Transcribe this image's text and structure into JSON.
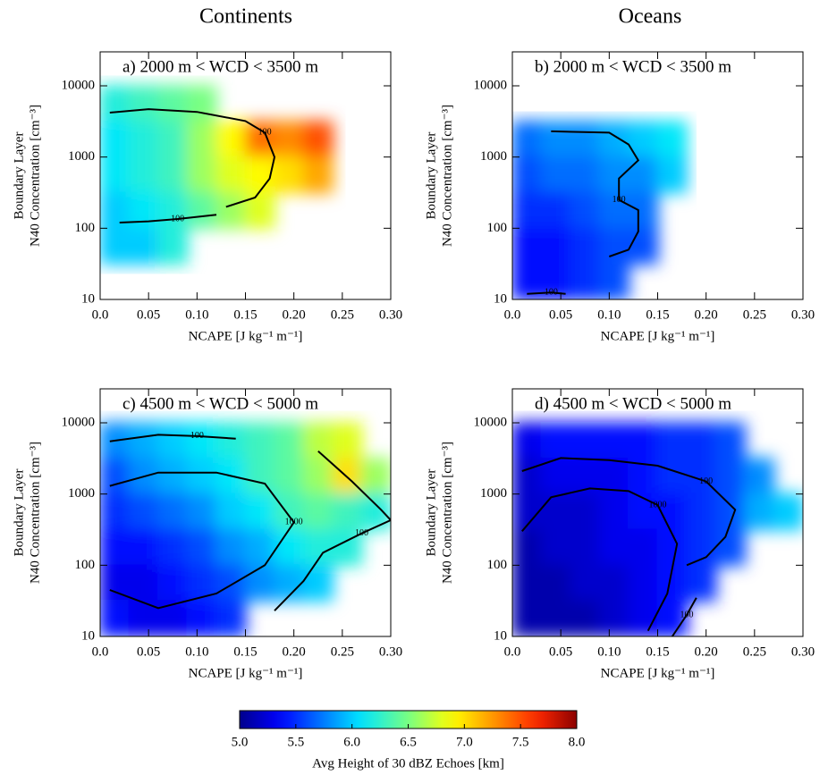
{
  "column_titles": [
    "Continents",
    "Oceans"
  ],
  "chart_data": [
    {
      "type": "contour",
      "title": "a)  2000 m < WCD < 3500 m",
      "xlabel": "NCAPE [J kg⁻¹ m⁻¹]",
      "ylabel": [
        "Boundary Layer",
        "N40 Concentration [cm⁻³]"
      ],
      "xlim": [
        0,
        0.3
      ],
      "xticks": [
        {
          "value": 0,
          "label": "0.0"
        },
        0.05,
        {
          "value": 0.1,
          "label": "0.10"
        },
        0.15,
        {
          "value": 0.2,
          "label": "0.20"
        },
        0.25,
        {
          "value": 0.3,
          "label": "0.30"
        }
      ],
      "ylim": [
        10,
        30000
      ],
      "yticks": [
        10,
        100,
        1000,
        10000
      ],
      "yscale": "log",
      "z": [
        [
          6.2,
          6.3,
          6.4,
          6.5,
          null,
          null,
          null,
          null,
          null,
          null
        ],
        [
          6.1,
          6.2,
          6.3,
          6.6,
          6.9,
          7.4,
          7.3,
          7.5,
          null,
          null
        ],
        [
          6.1,
          6.2,
          6.3,
          6.6,
          6.8,
          6.9,
          7.0,
          7.2,
          null,
          null
        ],
        [
          6.0,
          6.1,
          6.2,
          6.4,
          6.6,
          6.8,
          null,
          null,
          null,
          null
        ],
        [
          6.0,
          6.0,
          6.2,
          null,
          null,
          null,
          null,
          null,
          null,
          null
        ],
        [
          null,
          null,
          null,
          null,
          null,
          null,
          null,
          null,
          null,
          null
        ]
      ],
      "contours": [
        {
          "level": 100,
          "x": [
            0.01,
            0.05,
            0.1,
            0.15,
            0.17,
            0.18,
            0.175,
            0.16,
            0.13
          ],
          "y": [
            4200,
            4700,
            4300,
            3200,
            2200,
            1000,
            500,
            270,
            200
          ]
        },
        {
          "level": 100,
          "x": [
            0.02,
            0.05,
            0.08,
            0.12
          ],
          "y": [
            120,
            125,
            135,
            155
          ]
        }
      ]
    },
    {
      "type": "contour",
      "title": "b)  2000 m < WCD < 3500 m",
      "xlabel": "NCAPE [J kg⁻¹ m⁻¹]",
      "ylabel": [
        "Boundary Layer",
        "N40 Concentration [cm⁻³]"
      ],
      "xlim": [
        0,
        0.3
      ],
      "xticks": [
        {
          "value": 0,
          "label": "0.0"
        },
        0.05,
        {
          "value": 0.1,
          "label": "0.10"
        },
        0.15,
        {
          "value": 0.2,
          "label": "0.20"
        },
        0.25,
        {
          "value": 0.3,
          "label": "0.30"
        }
      ],
      "ylim": [
        10,
        30000
      ],
      "yticks": [
        10,
        100,
        1000,
        10000
      ],
      "yscale": "log",
      "z": [
        [
          null,
          null,
          null,
          null,
          null,
          null,
          null,
          null,
          null,
          null
        ],
        [
          5.7,
          5.8,
          5.8,
          5.9,
          6.0,
          6.1,
          null,
          null,
          null,
          null
        ],
        [
          5.6,
          5.7,
          5.7,
          5.8,
          5.8,
          6.0,
          null,
          null,
          null,
          null
        ],
        [
          5.5,
          5.5,
          5.6,
          5.7,
          5.7,
          null,
          null,
          null,
          null,
          null
        ],
        [
          5.4,
          5.4,
          5.5,
          5.6,
          5.6,
          null,
          null,
          null,
          null,
          null
        ],
        [
          5.4,
          5.4,
          5.5,
          5.6,
          null,
          null,
          null,
          null,
          null,
          null
        ]
      ],
      "contours": [
        {
          "level": 100,
          "x": [
            0.04,
            0.1,
            0.12,
            0.13,
            0.11,
            0.11,
            0.13,
            0.13,
            0.12,
            0.1
          ],
          "y": [
            2300,
            2200,
            1500,
            900,
            500,
            250,
            180,
            90,
            50,
            40
          ]
        },
        {
          "level": 100,
          "x": [
            0.015,
            0.04,
            0.055
          ],
          "y": [
            12,
            12.5,
            12
          ]
        }
      ]
    },
    {
      "type": "contour",
      "title": "c)  4500 m < WCD < 5000 m",
      "xlabel": "NCAPE [J kg⁻¹ m⁻¹]",
      "ylabel": [
        "Boundary Layer",
        "N40 Concentration [cm⁻³]"
      ],
      "xlim": [
        0,
        0.3
      ],
      "xticks": [
        {
          "value": 0,
          "label": "0.0"
        },
        0.05,
        {
          "value": 0.1,
          "label": "0.10"
        },
        0.15,
        {
          "value": 0.2,
          "label": "0.20"
        },
        0.25,
        {
          "value": 0.3,
          "label": "0.30"
        }
      ],
      "ylim": [
        10,
        30000
      ],
      "yticks": [
        10,
        100,
        1000,
        10000
      ],
      "yscale": "log",
      "z": [
        [
          5.8,
          5.9,
          6.0,
          6.1,
          6.2,
          6.3,
          6.4,
          6.7,
          6.8,
          null
        ],
        [
          5.6,
          5.8,
          5.9,
          6.0,
          6.1,
          6.3,
          6.4,
          6.6,
          7.0,
          6.6
        ],
        [
          5.5,
          5.6,
          5.7,
          5.8,
          6.0,
          6.1,
          6.3,
          6.4,
          6.3,
          6.2
        ],
        [
          5.4,
          5.4,
          5.5,
          5.6,
          5.8,
          5.9,
          6.1,
          6.2,
          6.2,
          null
        ],
        [
          5.3,
          5.3,
          5.4,
          5.5,
          5.6,
          5.8,
          5.9,
          6.0,
          null,
          null
        ],
        [
          5.4,
          5.3,
          5.3,
          5.4,
          5.5,
          null,
          null,
          null,
          null,
          null
        ]
      ],
      "contours": [
        {
          "level": 100,
          "x": [
            0.01,
            0.06,
            0.1,
            0.14
          ],
          "y": [
            5500,
            6800,
            6500,
            6000
          ]
        },
        {
          "level": 1000,
          "x": [
            0.01,
            0.06,
            0.12,
            0.17,
            0.2,
            0.17,
            0.12,
            0.06,
            0.01
          ],
          "y": [
            1300,
            2000,
            2000,
            1400,
            400,
            100,
            40,
            25,
            45
          ]
        },
        {
          "level": 100,
          "x": [
            0.225,
            0.26,
            0.29,
            0.3,
            0.27,
            0.23,
            0.21,
            0.18
          ],
          "y": [
            4000,
            1500,
            600,
            430,
            280,
            150,
            60,
            23
          ]
        }
      ]
    },
    {
      "type": "contour",
      "title": "d)  4500 m < WCD < 5000 m",
      "xlabel": "NCAPE [J kg⁻¹ m⁻¹]",
      "ylabel": [
        "Boundary Layer",
        "N40 Concentration [cm⁻³]"
      ],
      "xlim": [
        0,
        0.3
      ],
      "xticks": [
        {
          "value": 0,
          "label": "0.0"
        },
        0.05,
        {
          "value": 0.1,
          "label": "0.10"
        },
        0.15,
        {
          "value": 0.2,
          "label": "0.20"
        },
        0.25,
        {
          "value": 0.3,
          "label": "0.30"
        }
      ],
      "ylim": [
        10,
        30000
      ],
      "yticks": [
        10,
        100,
        1000,
        10000
      ],
      "yscale": "log",
      "z": [
        [
          5.3,
          5.4,
          5.4,
          5.4,
          5.4,
          5.5,
          5.5,
          5.6,
          null,
          null
        ],
        [
          5.2,
          5.3,
          5.3,
          5.3,
          5.4,
          5.5,
          5.5,
          5.6,
          5.8,
          null
        ],
        [
          5.2,
          5.2,
          5.2,
          5.3,
          5.4,
          5.4,
          5.5,
          5.6,
          5.9,
          6.0
        ],
        [
          5.1,
          5.2,
          5.2,
          5.3,
          5.3,
          5.4,
          5.5,
          5.6,
          null,
          null
        ],
        [
          5.1,
          5.1,
          5.2,
          5.2,
          5.3,
          5.4,
          5.5,
          null,
          null,
          null
        ],
        [
          5.1,
          5.1,
          5.1,
          5.2,
          5.3,
          5.4,
          null,
          null,
          null,
          null
        ]
      ],
      "contours": [
        {
          "level": 100,
          "x": [
            0.01,
            0.05,
            0.1,
            0.15,
            0.2,
            0.23,
            0.22,
            0.2,
            0.18
          ],
          "y": [
            2100,
            3200,
            3000,
            2500,
            1500,
            600,
            250,
            130,
            100
          ]
        },
        {
          "level": 1000,
          "x": [
            0.01,
            0.04,
            0.08,
            0.12,
            0.15,
            0.17,
            0.16,
            0.14
          ],
          "y": [
            300,
            900,
            1200,
            1100,
            700,
            200,
            40,
            12
          ]
        },
        {
          "level": 100,
          "x": [
            0.165,
            0.18,
            0.19
          ],
          "y": [
            10,
            20,
            35
          ]
        }
      ]
    }
  ],
  "colorbar": {
    "label": "Avg Height of 30 dBZ Echoes [km]",
    "lim": [
      5,
      8
    ],
    "ticks": [
      {
        "value": 5,
        "label": "5.0"
      },
      5.5,
      {
        "value": 6,
        "label": "6.0"
      },
      6.5,
      {
        "value": 7,
        "label": "7.0"
      },
      7.5,
      {
        "value": 8,
        "label": "8.0"
      }
    ],
    "colormap": "jet"
  }
}
